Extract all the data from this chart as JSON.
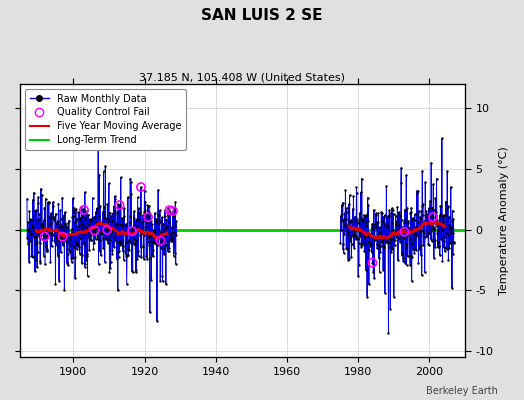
{
  "title": "SAN LUIS 2 SE",
  "subtitle": "37.185 N, 105.408 W (United States)",
  "ylabel": "Temperature Anomaly (°C)",
  "watermark": "Berkeley Earth",
  "xlim": [
    1885,
    2010
  ],
  "ylim": [
    -10.5,
    12
  ],
  "yticks": [
    -10,
    -5,
    0,
    5,
    10
  ],
  "xticks": [
    1900,
    1920,
    1940,
    1960,
    1980,
    2000
  ],
  "bg_color": "#e0e0e0",
  "plot_bg_color": "#ffffff",
  "data_color": "#0000dd",
  "raw_dot_color": "#000000",
  "qc_color": "#ff00ff",
  "moving_avg_color": "#dd0000",
  "trend_color": "#00cc00",
  "period1_start": 1887,
  "period1_end": 1929,
  "period2_start": 1975,
  "period2_end": 2007,
  "seed": 42
}
